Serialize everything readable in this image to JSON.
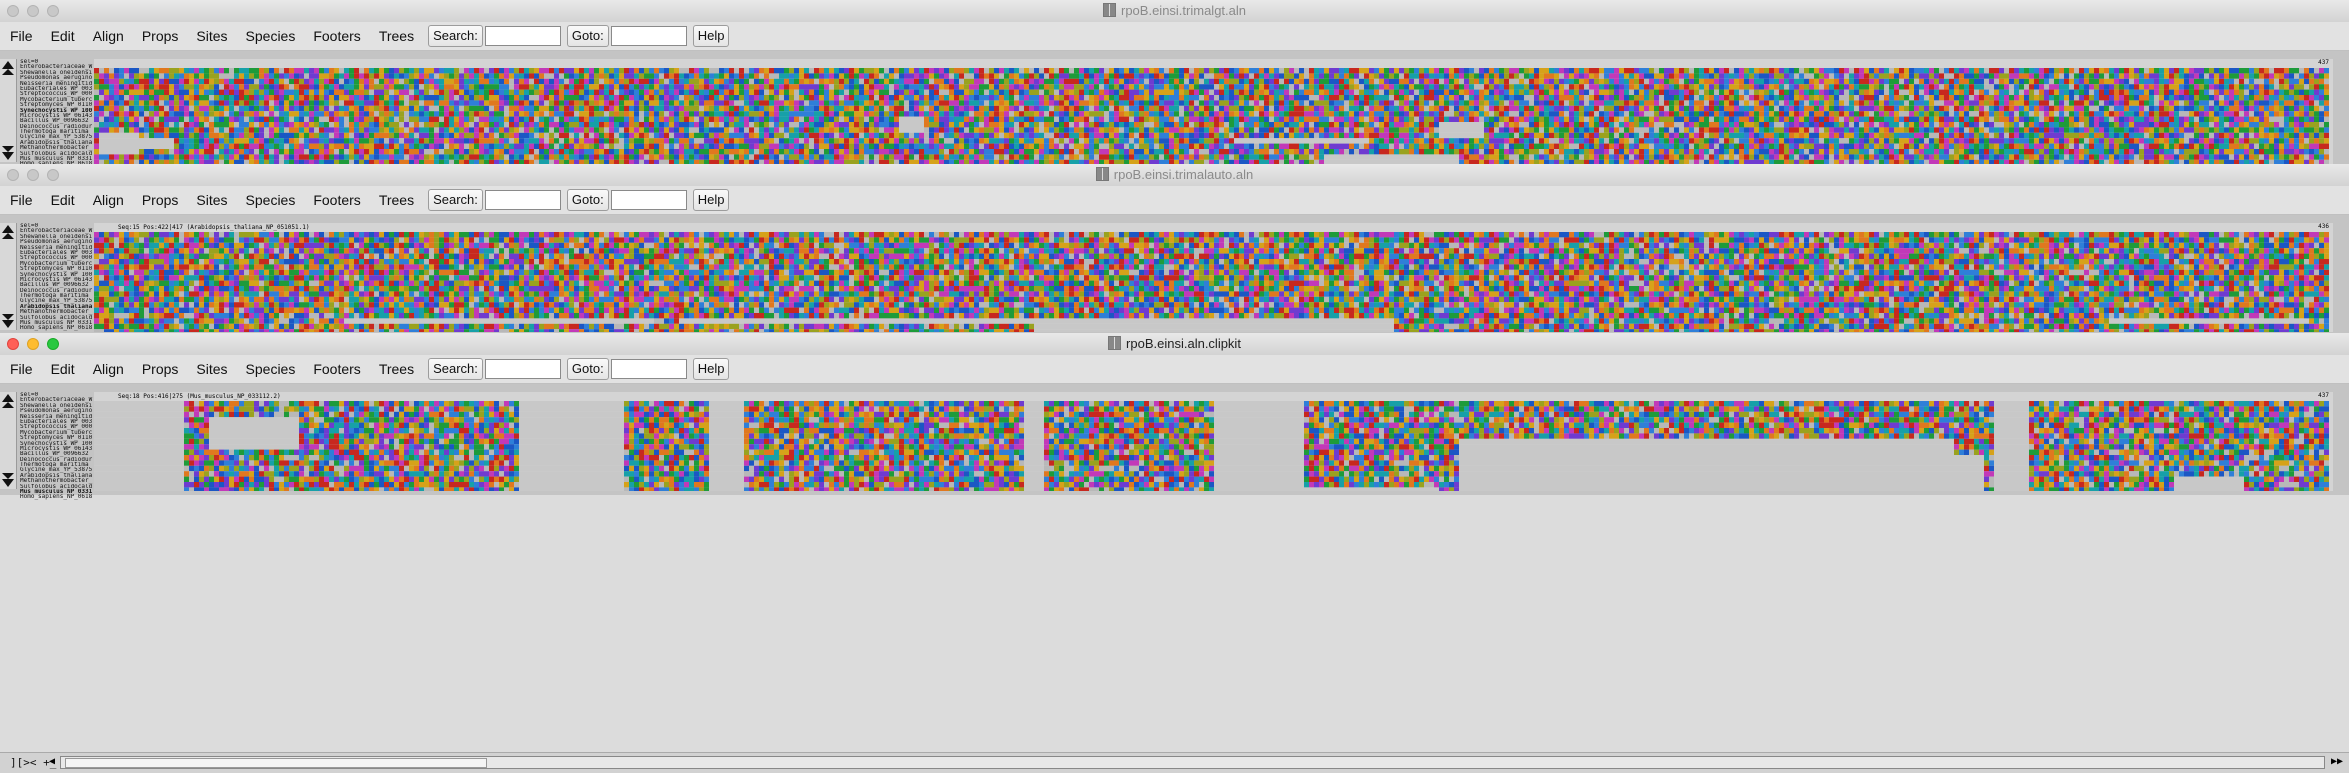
{
  "windows": [
    {
      "title": "rpoB.einsi.trimalgt.aln",
      "active": false,
      "info": "",
      "selected_row": 9,
      "gap_regions": [
        [
          0.002,
          0.02,
          12,
          15
        ],
        [
          0.02,
          0.035,
          13,
          14
        ],
        [
          0.36,
          0.37,
          9,
          11
        ],
        [
          0.6,
          0.62,
          10,
          12
        ],
        [
          0.51,
          0.57,
          13,
          13
        ]
      ],
      "tail_gap_start": 0.55,
      "tail_gap_end": 0.61,
      "alignment_length": "437"
    },
    {
      "title": "rpoB.einsi.trimalauto.aln",
      "active": false,
      "info": "Seq:15 Pos:422|417 (Arabidopsis_thaliana_NP_051051.1)",
      "selected_row": 15,
      "gap_regions": [
        [
          0.11,
          0.25,
          16,
          16
        ],
        [
          0.26,
          0.43,
          16,
          16
        ],
        [
          0.43,
          0.46,
          16,
          16
        ],
        [
          0.9,
          0.99,
          16,
          16
        ]
      ],
      "tail_gap_start": 0.42,
      "tail_gap_end": 0.58,
      "alignment_length": "436"
    },
    {
      "title": "rpoB.einsi.aln.clipkit",
      "active": true,
      "info": "Seq:18 Pos:416|275 (Mus_musculus_NP_033112.2)",
      "selected_row": 18,
      "gap_regions": [
        [
          0.0,
          0.04,
          0,
          19
        ],
        [
          0.05,
          0.09,
          3,
          8
        ],
        [
          0.19,
          0.235,
          0,
          19
        ],
        [
          0.275,
          0.29,
          0,
          19
        ],
        [
          0.415,
          0.425,
          0,
          19
        ],
        [
          0.5,
          0.54,
          0,
          19
        ],
        [
          0.61,
          0.83,
          7,
          19
        ],
        [
          0.83,
          0.845,
          10,
          19
        ],
        [
          0.85,
          0.865,
          0,
          19
        ],
        [
          0.93,
          0.96,
          14,
          19
        ]
      ],
      "tail_gap_start": 0.53,
      "tail_gap_end": 0.6,
      "alignment_length": "437"
    }
  ],
  "menu": {
    "items": [
      "File",
      "Edit",
      "Align",
      "Props",
      "Sites",
      "Species",
      "Footers",
      "Trees"
    ],
    "search_label": "Search:",
    "goto_label": "Goto:",
    "help_label": "Help",
    "search_value": "",
    "goto_value": ""
  },
  "sequences": [
    "sel=0",
    "Enterobacteriaceae_W",
    "Shewanella_oneidensi",
    "Pseudomonas_aerugino",
    "Neisseria_meningitid",
    "Eubacteriales_WP_003",
    "Streptococcus_WP_000",
    "Mycobacterium_tuberc",
    "Streptomyces_WP_0110",
    "Synechocystis_WP_100",
    "Microcystis_WP_06143",
    "Bacillus_WP_0096632",
    "Deinococcus_radiodur",
    "Thermotoga_maritima_",
    "Glycine_max_YP_53875",
    "Arabidopsis_thaliana",
    "Methanothermobacter_",
    "Sulfolobus_acidocald",
    "Mus_musculus_NP_0331",
    "Homo_sapiens_NP_0618"
  ],
  "colors": {
    "residues": [
      "#1b57c4",
      "#1e9b3a",
      "#c7281f",
      "#c239b8",
      "#d6a21a",
      "#17a0a8",
      "#e0781f",
      "#6f3bd0",
      "#9aa21f",
      "#2f7fd8",
      "#b8b8b8"
    ],
    "gap": "#c8c8c8"
  },
  "bottom_bar": {
    "label": "][>< +_"
  }
}
